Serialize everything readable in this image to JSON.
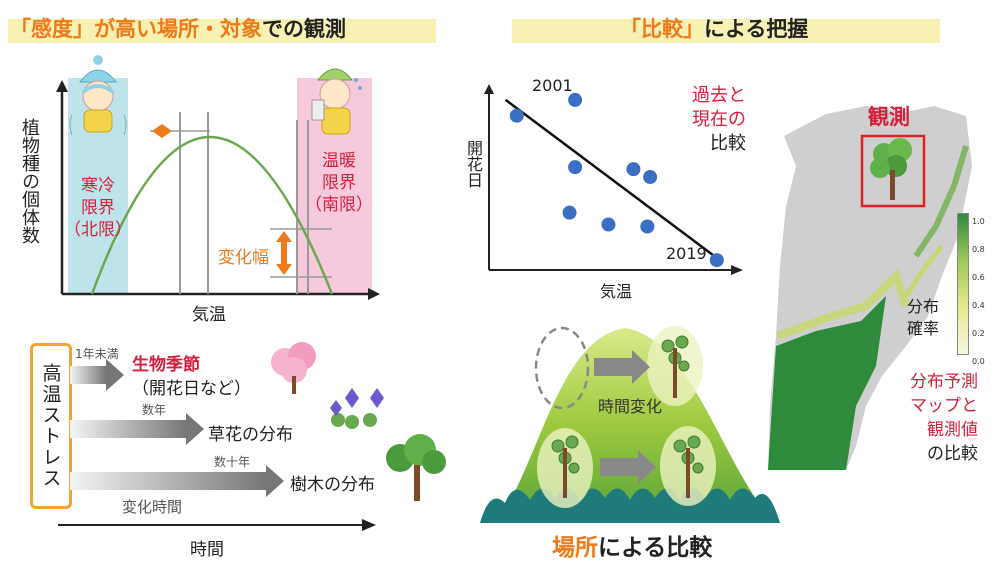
{
  "left_title": {
    "part1": "「感度」",
    "part2": "が高い場所・対象",
    "part3": "での観測"
  },
  "right_title": {
    "part1": "「比較」",
    "part2": "による把握"
  },
  "graph1": {
    "y_label": "植物種の個体数",
    "x_label": "気温",
    "cold_label": [
      "寒冷",
      "限界",
      "（北限）"
    ],
    "warm_label": [
      "温暖",
      "限界",
      "（南限）"
    ],
    "change_label": "変化幅"
  },
  "stress": {
    "box_label": "高温ストレス",
    "arrow1_time": "1年未満",
    "arrow1_label": "生物季節",
    "arrow1_sub": "（開花日など）",
    "arrow2_time": "数年",
    "arrow2_label": "草花の分布",
    "arrow3_time": "数十年",
    "arrow3_label": "樹木の分布",
    "change_time": "変化時間",
    "axis_label": "時間"
  },
  "scatter": {
    "y_label": "開花日",
    "x_label": "気温",
    "year_start": "2001",
    "year_end": "2019",
    "note": [
      "過去と",
      "現在の",
      "比較"
    ]
  },
  "chart_data": {
    "type": "scatter",
    "title": "",
    "xlabel": "気温",
    "ylabel": "開花日",
    "points": [
      [
        1,
        7.8
      ],
      [
        3.1,
        8.6
      ],
      [
        3.1,
        5.2
      ],
      [
        5.2,
        5.1
      ],
      [
        5.8,
        4.7
      ],
      [
        2.9,
        2.9
      ],
      [
        4.3,
        2.3
      ],
      [
        5.7,
        2.2
      ],
      [
        8.2,
        0.5
      ]
    ],
    "trend": [
      [
        0.6,
        8.6
      ],
      [
        8.4,
        0.4
      ]
    ],
    "xlim": [
      0,
      9
    ],
    "ylim": [
      0,
      9
    ],
    "annotations": [
      "2001",
      "2019"
    ]
  },
  "mountain": {
    "change_label": "時間変化",
    "caption_part1": "場所",
    "caption_part2": "による比較"
  },
  "map": {
    "observe_label": "観測",
    "legend_title": [
      "分布",
      "確率"
    ],
    "legend_ticks": [
      "1.0",
      "0.8",
      "0.6",
      "0.4",
      "0.2",
      "0.0"
    ],
    "note_red": [
      "分布予測",
      "マップと",
      "観測値"
    ],
    "note_black": "の比較"
  },
  "colors": {
    "accent_orange": "#ee7a1c",
    "accent_red": "#d61f3c",
    "band": "#f7f2b4",
    "curve_green": "#6aa84f",
    "point_blue": "#3b6fc4",
    "cold_band": "#bfe3ea",
    "warm_band": "#f7c9dd"
  }
}
